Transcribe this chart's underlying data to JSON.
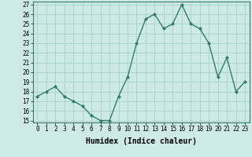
{
  "x": [
    0,
    1,
    2,
    3,
    4,
    5,
    6,
    7,
    8,
    9,
    10,
    11,
    12,
    13,
    14,
    15,
    16,
    17,
    18,
    19,
    20,
    21,
    22,
    23
  ],
  "y": [
    17.5,
    18.0,
    18.5,
    17.5,
    17.0,
    16.5,
    15.5,
    15.0,
    15.0,
    17.5,
    19.5,
    23.0,
    25.5,
    26.0,
    24.5,
    25.0,
    27.0,
    25.0,
    24.5,
    23.0,
    19.5,
    21.5,
    18.0,
    19.0
  ],
  "line_color": "#2e7d6e",
  "marker": "D",
  "marker_size": 2,
  "bg_color": "#ceeae7",
  "grid_color": "#aacfcc",
  "xlabel": "Humidex (Indice chaleur)",
  "ylim": [
    15,
    27
  ],
  "xlim": [
    -0.5,
    23.5
  ],
  "yticks": [
    15,
    16,
    17,
    18,
    19,
    20,
    21,
    22,
    23,
    24,
    25,
    26,
    27
  ],
  "xticks": [
    0,
    1,
    2,
    3,
    4,
    5,
    6,
    7,
    8,
    9,
    10,
    11,
    12,
    13,
    14,
    15,
    16,
    17,
    18,
    19,
    20,
    21,
    22,
    23
  ],
  "tick_fontsize": 5.5,
  "xlabel_fontsize": 7,
  "linewidth": 1.0
}
